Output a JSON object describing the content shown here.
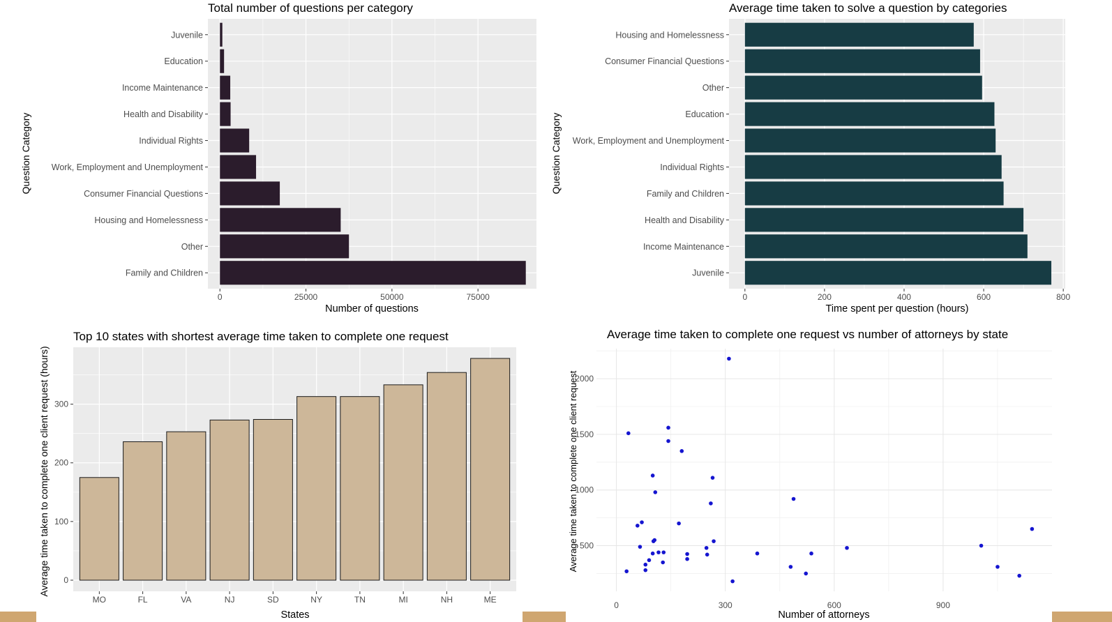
{
  "colors": {
    "panel_bg": "#ebebeb",
    "grid": "#ffffff",
    "bar1": "#2b1c2c",
    "bar2": "#173c44",
    "bar3": "#cdb799",
    "bar3_stroke": "#1a1a1a",
    "point": "#1515d0",
    "band": "#cfa670"
  },
  "chart_data": [
    {
      "type": "bar",
      "orientation": "horizontal",
      "title": "Total number of questions per category",
      "xlabel": "Number of questions",
      "ylabel": "Question Category",
      "categories": [
        "Family and Children",
        "Other",
        "Housing and Homelessness",
        "Consumer Financial Questions",
        "Work, Employment and Unemployment",
        "Individual Rights",
        "Health and Disability",
        "Income Maintenance",
        "Education",
        "Juvenile"
      ],
      "values": [
        88900,
        37500,
        35100,
        17400,
        10500,
        8500,
        3100,
        3000,
        1200,
        700
      ],
      "xlim": [
        -3500,
        92000
      ],
      "xticks": [
        0,
        25000,
        50000,
        75000
      ],
      "grid": true
    },
    {
      "type": "bar",
      "orientation": "horizontal",
      "title": "Average time taken to solve a question by categories",
      "xlabel": "Time spent per question (hours)",
      "ylabel": "Question Category",
      "categories": [
        "Juvenile",
        "Income Maintenance",
        "Health and Disability",
        "Family and Children",
        "Individual Rights",
        "Work, Employment and Unemployment",
        "Education",
        "Other",
        "Consumer Financial Questions",
        "Housing and Homelessness"
      ],
      "values": [
        770,
        710,
        700,
        650,
        645,
        630,
        627,
        596,
        591,
        575
      ],
      "xlim": [
        -40,
        805
      ],
      "xticks": [
        0,
        200,
        400,
        600,
        800
      ],
      "grid": true
    },
    {
      "type": "bar",
      "title": "Top 10 states with shortest average time taken to complete one request",
      "xlabel": "States",
      "ylabel": "Average time taken to complete one client request  (hours)",
      "categories": [
        "MO",
        "FL",
        "VA",
        "NJ",
        "SD",
        "NY",
        "TN",
        "MI",
        "NH",
        "ME"
      ],
      "values": [
        175,
        236,
        253,
        273,
        274,
        313,
        313,
        333,
        354,
        378
      ],
      "ylim": [
        -19,
        397
      ],
      "yticks": [
        0,
        100,
        200,
        300
      ],
      "grid": true
    },
    {
      "type": "scatter",
      "title": "Average time taken to complete one request vs number of attorneys by state",
      "xlabel": "Number of attorneys",
      "ylabel": "Average time taken to complete one client request",
      "xlim": [
        -55,
        1200
      ],
      "ylim": [
        90,
        2270
      ],
      "xticks": [
        0,
        300,
        600,
        900
      ],
      "yticks": [
        500,
        1000,
        1500,
        2000
      ],
      "grid": true,
      "points": [
        {
          "x": 310,
          "y": 2180
        },
        {
          "x": 33,
          "y": 1510
        },
        {
          "x": 143,
          "y": 1560
        },
        {
          "x": 143,
          "y": 1440
        },
        {
          "x": 180,
          "y": 1350
        },
        {
          "x": 100,
          "y": 1130
        },
        {
          "x": 265,
          "y": 1110
        },
        {
          "x": 107,
          "y": 980
        },
        {
          "x": 488,
          "y": 920
        },
        {
          "x": 260,
          "y": 880
        },
        {
          "x": 70,
          "y": 710
        },
        {
          "x": 58,
          "y": 680
        },
        {
          "x": 172,
          "y": 700
        },
        {
          "x": 102,
          "y": 540
        },
        {
          "x": 105,
          "y": 550
        },
        {
          "x": 268,
          "y": 540
        },
        {
          "x": 65,
          "y": 490
        },
        {
          "x": 248,
          "y": 480
        },
        {
          "x": 635,
          "y": 480
        },
        {
          "x": 1005,
          "y": 500
        },
        {
          "x": 1145,
          "y": 650
        },
        {
          "x": 100,
          "y": 430
        },
        {
          "x": 116,
          "y": 440
        },
        {
          "x": 130,
          "y": 440
        },
        {
          "x": 195,
          "y": 425
        },
        {
          "x": 250,
          "y": 420
        },
        {
          "x": 388,
          "y": 430
        },
        {
          "x": 537,
          "y": 430
        },
        {
          "x": 195,
          "y": 380
        },
        {
          "x": 90,
          "y": 370
        },
        {
          "x": 128,
          "y": 350
        },
        {
          "x": 80,
          "y": 330
        },
        {
          "x": 480,
          "y": 310
        },
        {
          "x": 1050,
          "y": 310
        },
        {
          "x": 80,
          "y": 280
        },
        {
          "x": 28,
          "y": 270
        },
        {
          "x": 522,
          "y": 250
        },
        {
          "x": 1110,
          "y": 230
        },
        {
          "x": 320,
          "y": 180
        }
      ]
    }
  ]
}
